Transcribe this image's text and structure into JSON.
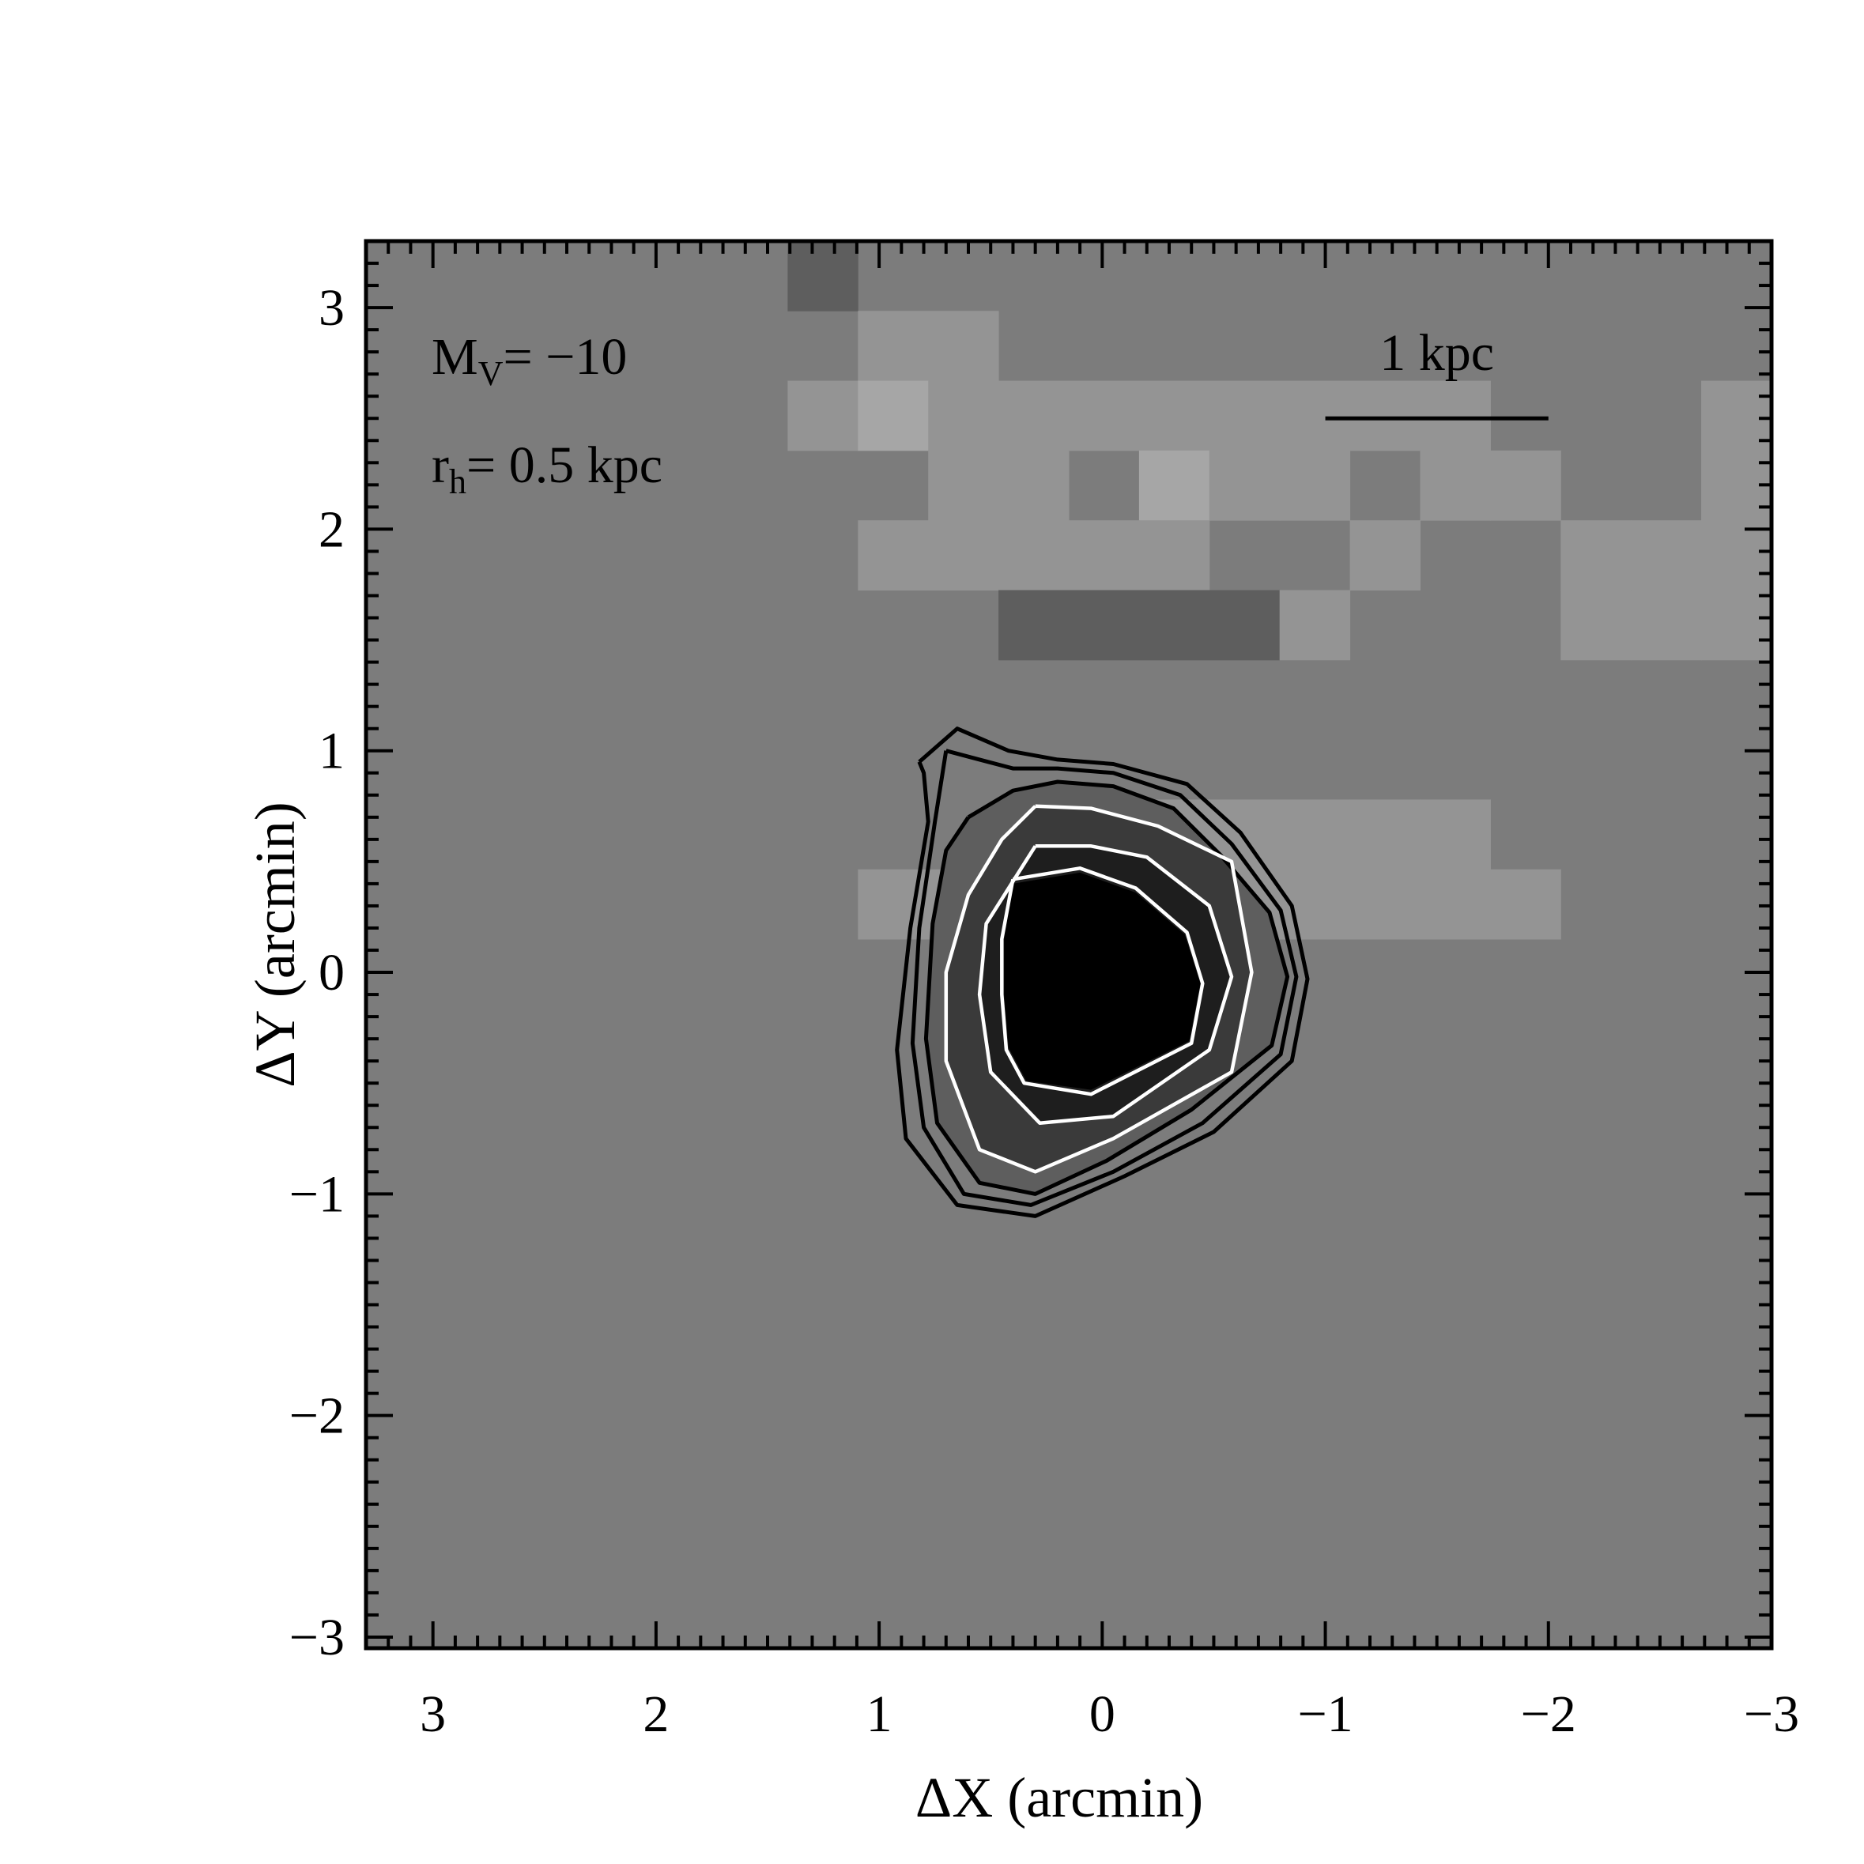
{
  "chart_data": {
    "type": "heatmap",
    "xlabel": "ΔX (arcmin)",
    "ylabel": "ΔY (arcmin)",
    "xlim": [
      3.3,
      -3.0
    ],
    "ylim": [
      -3.05,
      3.3
    ],
    "grid": false,
    "x_ticks": [
      {
        "value": 3,
        "label": "3"
      },
      {
        "value": 2,
        "label": "2"
      },
      {
        "value": 1,
        "label": "1"
      },
      {
        "value": 0,
        "label": "0"
      },
      {
        "value": -1,
        "label": "−1"
      },
      {
        "value": -2,
        "label": "−2"
      },
      {
        "value": -3,
        "label": "−3"
      }
    ],
    "y_ticks": [
      {
        "value": 3,
        "label": "3"
      },
      {
        "value": 2,
        "label": "2"
      },
      {
        "value": 1,
        "label": "1"
      },
      {
        "value": 0,
        "label": "0"
      },
      {
        "value": -1,
        "label": "−1"
      },
      {
        "value": -2,
        "label": "−2"
      },
      {
        "value": -3,
        "label": "−3"
      }
    ],
    "annotations": {
      "mv": {
        "main": "M",
        "sub": "V",
        "rest": "= −10"
      },
      "rh": {
        "main": "r",
        "sub": "h",
        "rest": "= 0.5 kpc"
      },
      "scale_bar": {
        "label": "1 kpc",
        "x_start": -1.0,
        "x_end": -2.0,
        "y": 2.5
      }
    },
    "background_level": 3,
    "cell_size": 0.315,
    "grid_origin": {
      "x": 3.3,
      "y": 3.3
    },
    "level_colors": [
      "#000000",
      "#3a3a3a",
      "#5e5e5e",
      "#7c7c7c",
      "#949494",
      "#a6a6a6",
      "#bababa",
      "#cdcdcd"
    ],
    "cells": [
      [
        3,
        3,
        3,
        3,
        3,
        3,
        2,
        3,
        3,
        3,
        3,
        3,
        3,
        3,
        3,
        3,
        3,
        3,
        3,
        3
      ],
      [
        3,
        3,
        3,
        3,
        3,
        3,
        3,
        4,
        4,
        3,
        3,
        3,
        3,
        3,
        3,
        3,
        3,
        3,
        3,
        3
      ],
      [
        3,
        3,
        3,
        3,
        3,
        3,
        4,
        5,
        4,
        4,
        4,
        4,
        4,
        4,
        4,
        4,
        3,
        3,
        3,
        4
      ],
      [
        3,
        3,
        3,
        3,
        3,
        3,
        3,
        3,
        4,
        4,
        3,
        5,
        4,
        4,
        3,
        4,
        4,
        3,
        3,
        4
      ],
      [
        3,
        3,
        3,
        3,
        3,
        3,
        3,
        4,
        4,
        4,
        4,
        4,
        3,
        3,
        4,
        3,
        3,
        4,
        4,
        4
      ],
      [
        3,
        3,
        3,
        3,
        3,
        3,
        3,
        3,
        3,
        2,
        2,
        2,
        2,
        4,
        3,
        3,
        3,
        4,
        4,
        4
      ],
      [
        3,
        3,
        3,
        3,
        3,
        3,
        3,
        3,
        3,
        3,
        3,
        3,
        3,
        3,
        3,
        3,
        3,
        3,
        3,
        3
      ],
      [
        3,
        3,
        3,
        3,
        3,
        3,
        3,
        3,
        3,
        3,
        3,
        3,
        3,
        3,
        3,
        3,
        3,
        3,
        3,
        3
      ],
      [
        3,
        3,
        3,
        3,
        3,
        3,
        3,
        3,
        3,
        4,
        4,
        4,
        4,
        4,
        4,
        4,
        3,
        3,
        3,
        3
      ],
      [
        3,
        3,
        3,
        3,
        3,
        3,
        3,
        4,
        4,
        4,
        4,
        4,
        4,
        4,
        4,
        4,
        4,
        3,
        3,
        3
      ],
      [
        3,
        3,
        3,
        3,
        3,
        3,
        3,
        3,
        3,
        3,
        3,
        3,
        3,
        3,
        3,
        3,
        3,
        3,
        3,
        3
      ],
      [
        3,
        3,
        3,
        3,
        3,
        3,
        3,
        3,
        3,
        3,
        3,
        3,
        3,
        3,
        3,
        3,
        3,
        3,
        3,
        3
      ],
      [
        3,
        3,
        3,
        3,
        3,
        3,
        3,
        3,
        3,
        3,
        3,
        3,
        3,
        3,
        3,
        3,
        3,
        3,
        3,
        3
      ],
      [
        3,
        3,
        3,
        3,
        3,
        3,
        3,
        3,
        3,
        3,
        3,
        3,
        3,
        3,
        3,
        3,
        3,
        3,
        3,
        3
      ],
      [
        3,
        3,
        3,
        3,
        3,
        3,
        3,
        3,
        3,
        3,
        3,
        3,
        3,
        3,
        3,
        3,
        3,
        3,
        3,
        3
      ],
      [
        3,
        3,
        3,
        3,
        3,
        3,
        3,
        3,
        3,
        3,
        3,
        3,
        3,
        3,
        3,
        3,
        3,
        3,
        3,
        3
      ],
      [
        3,
        3,
        3,
        3,
        3,
        3,
        3,
        3,
        3,
        3,
        3,
        3,
        3,
        3,
        3,
        3,
        3,
        3,
        3,
        3
      ],
      [
        3,
        3,
        3,
        3,
        3,
        3,
        3,
        3,
        3,
        3,
        3,
        3,
        3,
        3,
        3,
        3,
        3,
        3,
        3,
        3
      ],
      [
        3,
        3,
        3,
        3,
        3,
        3,
        3,
        3,
        3,
        3,
        3,
        3,
        3,
        3,
        3,
        3,
        3,
        3,
        3,
        3
      ],
      [
        3,
        3,
        3,
        3,
        3,
        3,
        3,
        3,
        3,
        3,
        3,
        3,
        3,
        3,
        3,
        3,
        3,
        3,
        3,
        3
      ]
    ],
    "black_contours": [
      [
        [
          0.82,
          0.95
        ],
        [
          0.65,
          1.1
        ],
        [
          0.42,
          1.0
        ],
        [
          0.2,
          0.96
        ],
        [
          -0.05,
          0.94
        ],
        [
          -0.38,
          0.85
        ],
        [
          -0.62,
          0.63
        ],
        [
          -0.85,
          0.3
        ],
        [
          -0.92,
          -0.03
        ],
        [
          -0.85,
          -0.4
        ],
        [
          -0.5,
          -0.72
        ],
        [
          -0.1,
          -0.92
        ],
        [
          0.3,
          -1.1
        ],
        [
          0.65,
          -1.05
        ],
        [
          0.88,
          -0.75
        ],
        [
          0.92,
          -0.35
        ],
        [
          0.86,
          0.2
        ],
        [
          0.78,
          0.68
        ],
        [
          0.8,
          0.9
        ],
        [
          0.82,
          0.95
        ]
      ],
      [
        [
          0.7,
          1.0
        ],
        [
          0.55,
          0.96
        ],
        [
          0.4,
          0.92
        ],
        [
          0.2,
          0.92
        ],
        [
          -0.05,
          0.9
        ],
        [
          -0.35,
          0.8
        ],
        [
          -0.58,
          0.58
        ],
        [
          -0.8,
          0.28
        ],
        [
          -0.87,
          -0.02
        ],
        [
          -0.8,
          -0.37
        ],
        [
          -0.45,
          -0.68
        ],
        [
          -0.05,
          -0.9
        ],
        [
          0.32,
          -1.05
        ],
        [
          0.62,
          -1.0
        ],
        [
          0.8,
          -0.7
        ],
        [
          0.85,
          -0.32
        ],
        [
          0.82,
          0.2
        ],
        [
          0.75,
          0.68
        ],
        [
          0.7,
          1.0
        ]
      ],
      [
        [
          0.6,
          0.7
        ],
        [
          0.4,
          0.82
        ],
        [
          0.2,
          0.86
        ],
        [
          -0.05,
          0.84
        ],
        [
          -0.32,
          0.74
        ],
        [
          -0.53,
          0.53
        ],
        [
          -0.75,
          0.27
        ],
        [
          -0.83,
          -0.02
        ],
        [
          -0.76,
          -0.33
        ],
        [
          -0.4,
          -0.62
        ],
        [
          -0.02,
          -0.85
        ],
        [
          0.3,
          -1.0
        ],
        [
          0.55,
          -0.95
        ],
        [
          0.74,
          -0.68
        ],
        [
          0.79,
          -0.3
        ],
        [
          0.76,
          0.22
        ],
        [
          0.7,
          0.55
        ],
        [
          0.6,
          0.7
        ]
      ]
    ],
    "white_contours": [
      [
        [
          0.3,
          0.75
        ],
        [
          0.05,
          0.74
        ],
        [
          -0.25,
          0.66
        ],
        [
          -0.58,
          0.5
        ],
        [
          -0.67,
          0.0
        ],
        [
          -0.58,
          -0.45
        ],
        [
          -0.05,
          -0.75
        ],
        [
          0.3,
          -0.9
        ],
        [
          0.55,
          -0.8
        ],
        [
          0.7,
          -0.4
        ],
        [
          0.7,
          0.0
        ],
        [
          0.6,
          0.35
        ],
        [
          0.45,
          0.6
        ],
        [
          0.3,
          0.75
        ]
      ],
      [
        [
          0.3,
          0.57
        ],
        [
          0.05,
          0.57
        ],
        [
          -0.2,
          0.52
        ],
        [
          -0.48,
          0.3
        ],
        [
          -0.58,
          -0.02
        ],
        [
          -0.48,
          -0.35
        ],
        [
          -0.05,
          -0.65
        ],
        [
          0.28,
          -0.68
        ],
        [
          0.5,
          -0.45
        ],
        [
          0.55,
          -0.1
        ],
        [
          0.52,
          0.22
        ],
        [
          0.3,
          0.57
        ]
      ],
      [
        [
          0.4,
          0.42
        ],
        [
          0.1,
          0.47
        ],
        [
          -0.15,
          0.38
        ],
        [
          -0.38,
          0.18
        ],
        [
          -0.45,
          -0.05
        ],
        [
          -0.4,
          -0.32
        ],
        [
          0.05,
          -0.55
        ],
        [
          0.35,
          -0.5
        ],
        [
          0.43,
          -0.35
        ],
        [
          0.45,
          -0.1
        ],
        [
          0.45,
          0.15
        ],
        [
          0.4,
          0.42
        ]
      ]
    ],
    "core": [
      [
        0.4,
        0.4
      ],
      [
        0.1,
        0.45
      ],
      [
        -0.15,
        0.36
      ],
      [
        -0.37,
        0.17
      ],
      [
        -0.44,
        -0.05
      ],
      [
        -0.39,
        -0.31
      ],
      [
        0.05,
        -0.53
      ],
      [
        0.34,
        -0.49
      ],
      [
        0.42,
        -0.34
      ],
      [
        0.44,
        -0.1
      ],
      [
        0.44,
        0.15
      ],
      [
        0.4,
        0.4
      ]
    ]
  }
}
